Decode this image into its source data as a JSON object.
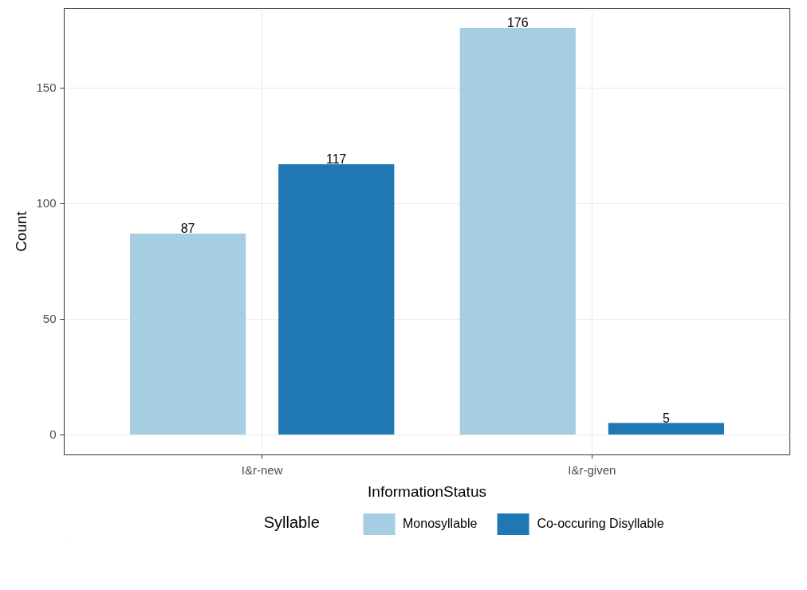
{
  "chart_data": {
    "type": "bar",
    "xlabel": "InformationStatus",
    "ylabel": "Count",
    "legend_title": "Syllable",
    "categories": [
      "I&r-new",
      "I&r-given"
    ],
    "series": [
      {
        "name": "Monosyllable",
        "color": "#a6cee3",
        "values": [
          87,
          176
        ]
      },
      {
        "name": "Co-occuring Disyllable",
        "color": "#1f78b4",
        "values": [
          117,
          5
        ]
      }
    ],
    "ylim": [
      -8.8,
      184.5
    ],
    "yticks": [
      0,
      50,
      100,
      150
    ],
    "data_labels": true,
    "grid": true,
    "legend": "bottom"
  }
}
